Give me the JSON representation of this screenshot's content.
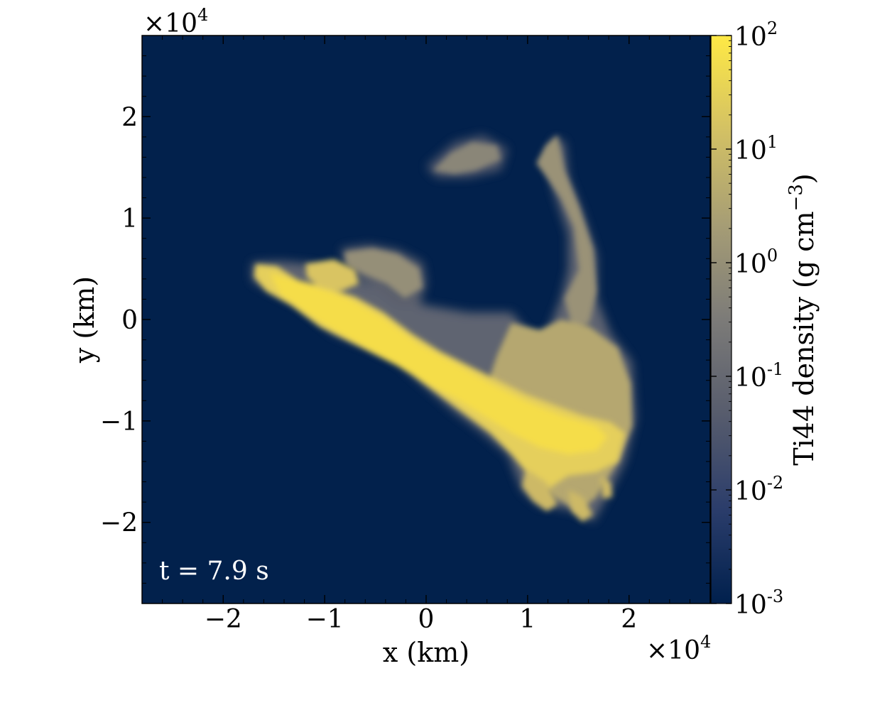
{
  "chart_data": {
    "type": "heatmap",
    "title": "",
    "xlabel": "x  (km)",
    "ylabel": "y  (km)",
    "x_multiplier": "×10",
    "x_multiplier_exp": "4",
    "y_multiplier": "×10",
    "y_multiplier_exp": "4",
    "xlim": [
      -2.8,
      2.8
    ],
    "ylim": [
      -2.8,
      2.8
    ],
    "x_ticks": [
      -2,
      -1,
      0,
      1,
      2
    ],
    "x_tick_labels": [
      "−2",
      "−1",
      "0",
      "1",
      "2"
    ],
    "y_ticks": [
      -2,
      -1,
      0,
      1,
      2
    ],
    "y_tick_labels": [
      "−2",
      "−1",
      "0",
      "1",
      "2"
    ],
    "annotation": "t = 7.9 s",
    "background_color": "#02214c",
    "colorbar": {
      "label": "Ti44 density (g cm",
      "label_exp": "−3",
      "label_end": ")",
      "scale": "log",
      "range": [
        -3,
        2
      ],
      "ticks": [
        {
          "value": 2,
          "base": "10",
          "exp": "2"
        },
        {
          "value": 1,
          "base": "10",
          "exp": "1"
        },
        {
          "value": 0,
          "base": "10",
          "exp": "0"
        },
        {
          "value": -1,
          "base": "10",
          "exp": "-1"
        },
        {
          "value": -2,
          "base": "10",
          "exp": "-2"
        },
        {
          "value": -3,
          "base": "10",
          "exp": "-3"
        }
      ],
      "colors": [
        "#00204d",
        "#2b3d6b",
        "#575c6d",
        "#7c7b78",
        "#a69d75",
        "#d3c164",
        "#ffe945"
      ]
    }
  }
}
